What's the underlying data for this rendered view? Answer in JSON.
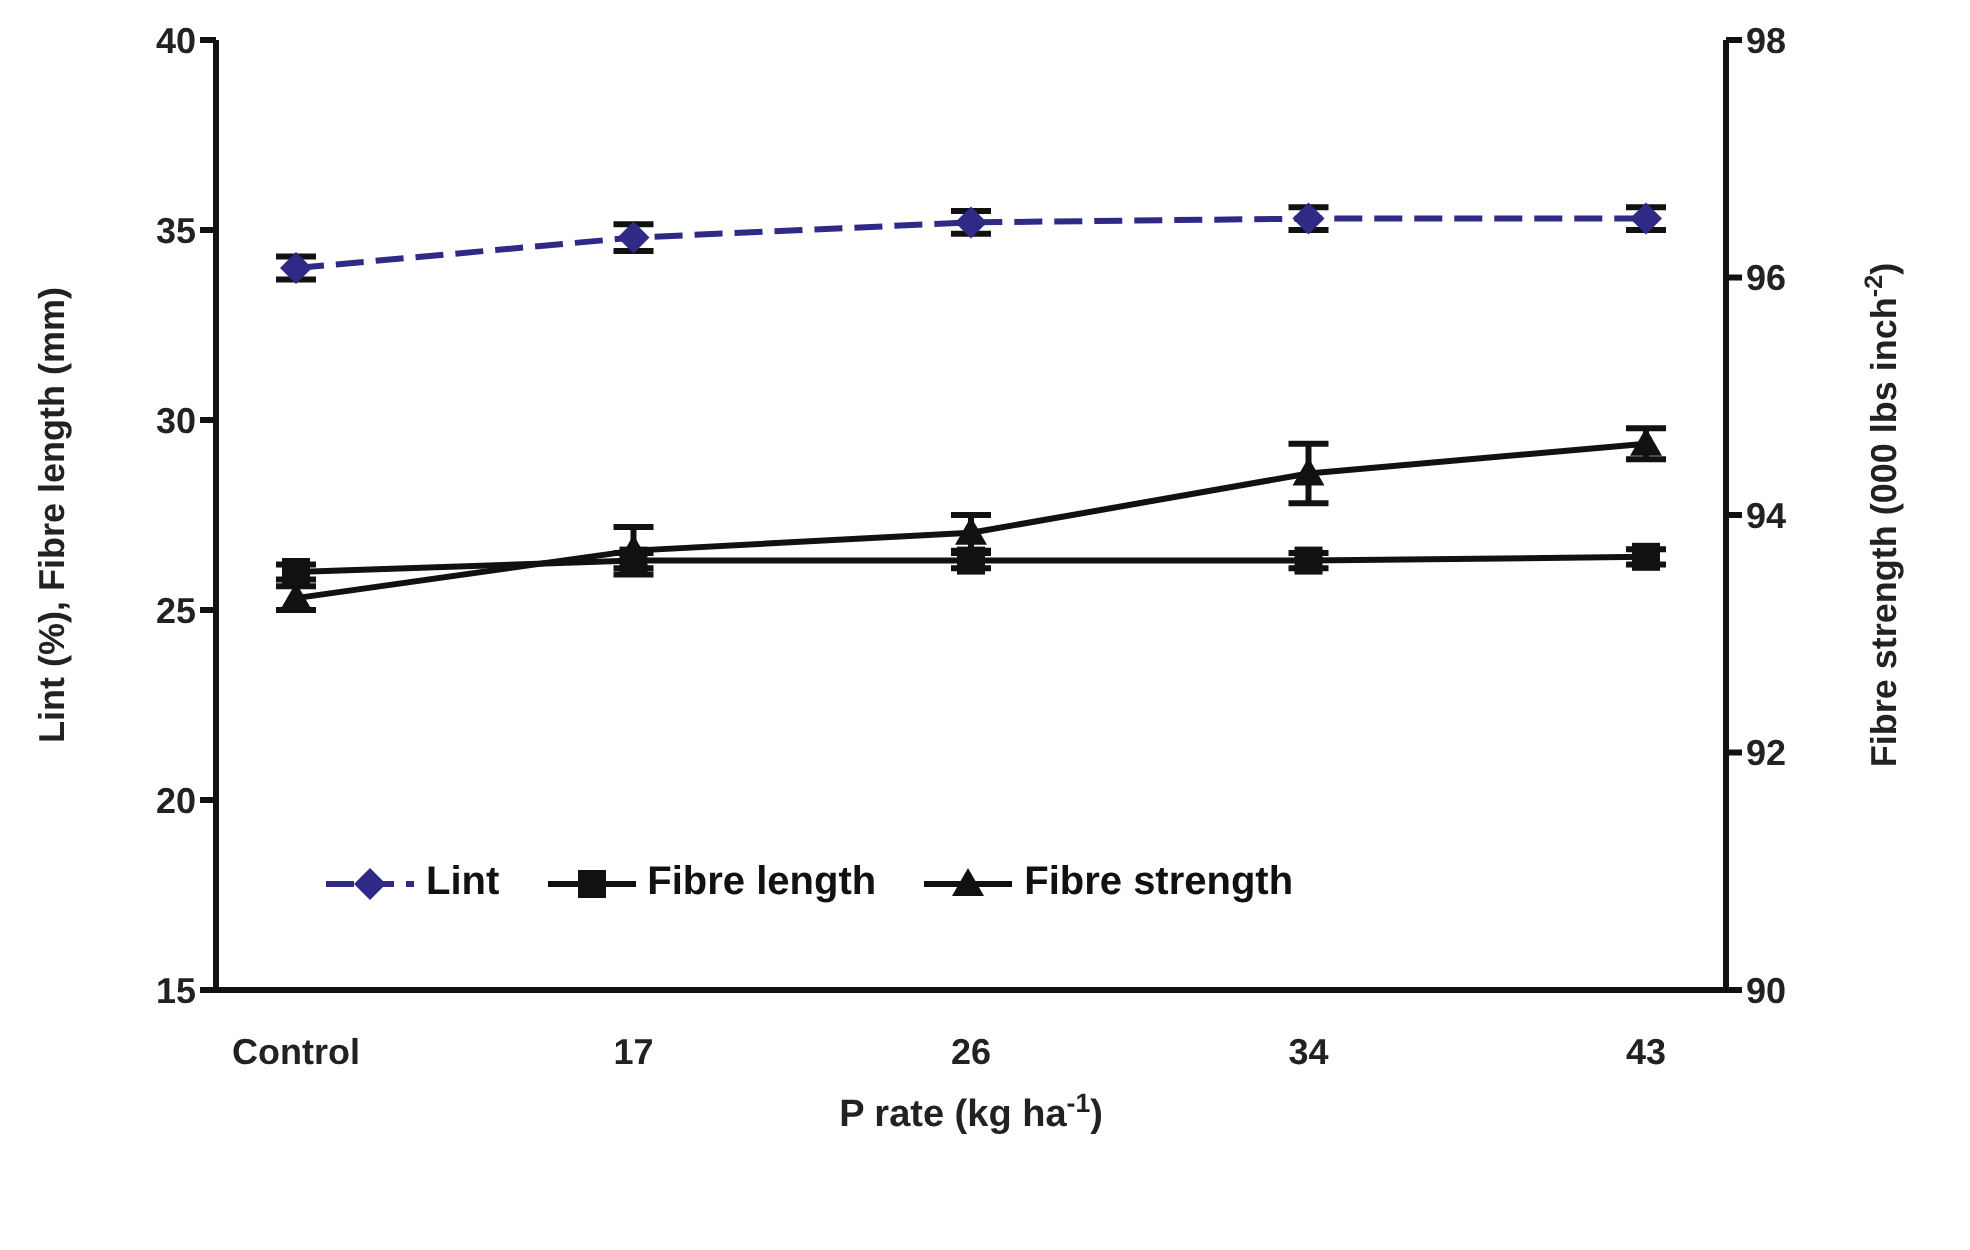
{
  "chart_data": {
    "type": "line",
    "xlabel": "P rate (kg ha$^{-1}$)",
    "ylabel": "Lint (%), Fibre length (mm)",
    "y2label": "Fibre strength (000 lbs inch$^{-2}$)",
    "categories": [
      "Control",
      "17",
      "26",
      "34",
      "43"
    ],
    "series": [
      {
        "name": "Lint",
        "color": "#2e2a85",
        "marker": "diamond",
        "line_style": "dashed",
        "values": [
          34.0,
          34.8,
          35.2,
          35.3,
          35.3
        ],
        "errors": [
          0.3,
          0.35,
          0.3,
          0.3,
          0.3
        ]
      },
      {
        "name": "Fibre length",
        "color": "#111111",
        "marker": "square",
        "line_style": "solid",
        "values": [
          26.0,
          26.3,
          26.3,
          26.3,
          26.4
        ],
        "errors": [
          0.2,
          0.2,
          0.2,
          0.2,
          0.2
        ]
      },
      {
        "name": "Fibre strength",
        "color": "#111111",
        "marker": "triangle",
        "line_style": "solid",
        "axis": "y2",
        "values": [
          93.3,
          93.7,
          93.85,
          94.35,
          94.6
        ],
        "errors": [
          0.1,
          0.2,
          0.15,
          0.25,
          0.13
        ]
      }
    ],
    "ylim": [
      15,
      40
    ],
    "yticks": [
      15,
      20,
      25,
      30,
      35,
      40
    ],
    "y2lim": [
      90,
      98
    ],
    "y2ticks": [
      90,
      92,
      94,
      96,
      98
    ],
    "grid": false,
    "legend": "bottom left"
  }
}
